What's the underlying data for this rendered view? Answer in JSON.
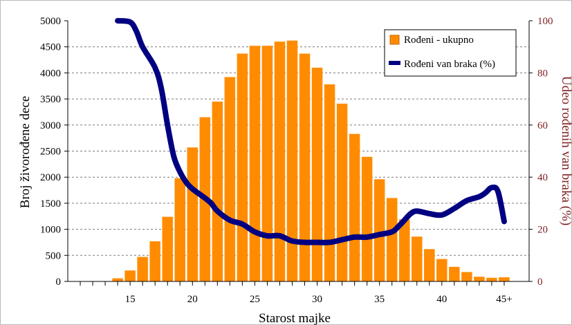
{
  "chart_data": {
    "type": "bar",
    "xlabel": "Starost majke",
    "ylabel": "Broj živorođene dece",
    "y2label": "Udeo rođenih van braka (%)",
    "x_ticks": [
      "15",
      "20",
      "25",
      "30",
      "35",
      "40",
      "45+"
    ],
    "y_ticks": [
      "0",
      "500",
      "1000",
      "1500",
      "2000",
      "2500",
      "3000",
      "3500",
      "4000",
      "4500",
      "5000"
    ],
    "y2_ticks": [
      "0",
      "20",
      "40",
      "60",
      "80",
      "100"
    ],
    "ylim": [
      0,
      5000
    ],
    "y2lim": [
      0,
      100
    ],
    "grid": true,
    "legend_position": "top-right",
    "colors": {
      "bars": "#ff8c00",
      "line": "#000080",
      "axis_right": "#7f1f1f"
    },
    "series": [
      {
        "name": "Rođeni - ukupno",
        "type": "bar",
        "x": [
          14,
          15,
          16,
          17,
          18,
          19,
          20,
          21,
          22,
          23,
          24,
          25,
          26,
          27,
          28,
          29,
          30,
          31,
          32,
          33,
          34,
          35,
          36,
          37,
          38,
          39,
          40,
          41,
          42,
          43,
          44,
          45
        ],
        "values": [
          60,
          210,
          470,
          770,
          1240,
          1980,
          2570,
          3150,
          3450,
          3920,
          4370,
          4520,
          4520,
          4600,
          4620,
          4370,
          4100,
          3780,
          3410,
          2830,
          2390,
          1960,
          1600,
          1190,
          860,
          620,
          430,
          280,
          180,
          90,
          70,
          80
        ]
      },
      {
        "name": "Rođeni van braka (%)",
        "type": "line",
        "axis": "right",
        "x": [
          14,
          15,
          15.5,
          16,
          17,
          17.5,
          18,
          18.5,
          19,
          19.5,
          20,
          21,
          21.5,
          22,
          23,
          24,
          25,
          26,
          27,
          28,
          29,
          30,
          31,
          32,
          33,
          34,
          35,
          36,
          36.5,
          37,
          37.5,
          38,
          39,
          40,
          41,
          42,
          43,
          43.5,
          44,
          44.5,
          45
        ],
        "values": [
          100,
          99.5,
          96,
          90,
          82,
          74,
          60,
          48,
          42,
          38,
          35.5,
          32,
          30,
          27,
          23.5,
          22,
          19,
          17.5,
          17.5,
          15.5,
          15,
          15,
          15,
          16,
          17,
          17,
          18,
          19,
          21,
          23.5,
          26,
          27,
          26,
          25.5,
          28,
          31,
          32.5,
          34,
          36,
          34.5,
          23
        ]
      }
    ]
  }
}
